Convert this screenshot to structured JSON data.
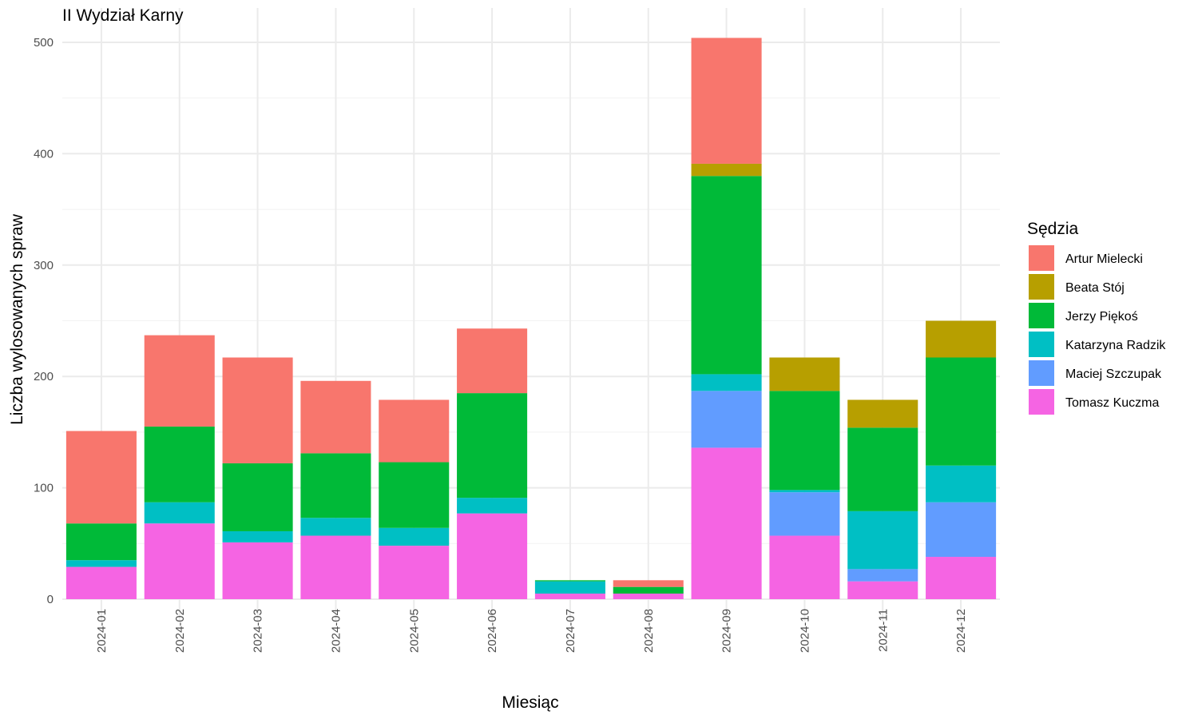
{
  "chart_data": {
    "type": "bar",
    "stacked": true,
    "title": "II Wydział Karny",
    "xlabel": "Miesiąc",
    "ylabel": "Liczba wylosowanych spraw",
    "ylim": [
      0,
      510
    ],
    "yticks": [
      0,
      100,
      200,
      300,
      400,
      500
    ],
    "grid": true,
    "legend_position": "right",
    "legend_title": "Sędzia",
    "categories": [
      "2024-01",
      "2024-02",
      "2024-03",
      "2024-04",
      "2024-05",
      "2024-06",
      "2024-07",
      "2024-08",
      "2024-09",
      "2024-10",
      "2024-11",
      "2024-12"
    ],
    "series": [
      {
        "name": "Tomasz Kuczma",
        "color": "#F564E3",
        "values": [
          29,
          68,
          51,
          57,
          48,
          77,
          5,
          5,
          136,
          57,
          16,
          38
        ]
      },
      {
        "name": "Maciej Szczupak",
        "color": "#619CFF",
        "values": [
          0,
          0,
          0,
          0,
          0,
          0,
          0,
          0,
          51,
          39,
          11,
          49
        ]
      },
      {
        "name": "Katarzyna Radzik",
        "color": "#00BFC4",
        "values": [
          6,
          19,
          10,
          16,
          16,
          14,
          11,
          0,
          15,
          2,
          52,
          33
        ]
      },
      {
        "name": "Jerzy Piękoś",
        "color": "#00BA38",
        "values": [
          33,
          68,
          61,
          58,
          59,
          94,
          1,
          6,
          178,
          89,
          75,
          97
        ]
      },
      {
        "name": "Beata Stój",
        "color": "#B79F00",
        "values": [
          0,
          0,
          0,
          0,
          0,
          0,
          0,
          0,
          11,
          30,
          25,
          33
        ]
      },
      {
        "name": "Artur Mielecki",
        "color": "#F8766D",
        "values": [
          83,
          82,
          95,
          65,
          56,
          58,
          0,
          6,
          113,
          0,
          0,
          0
        ]
      }
    ],
    "legend_order": [
      "Artur Mielecki",
      "Beata Stój",
      "Jerzy Piękoś",
      "Katarzyna Radzik",
      "Maciej Szczupak",
      "Tomasz Kuczma"
    ]
  }
}
